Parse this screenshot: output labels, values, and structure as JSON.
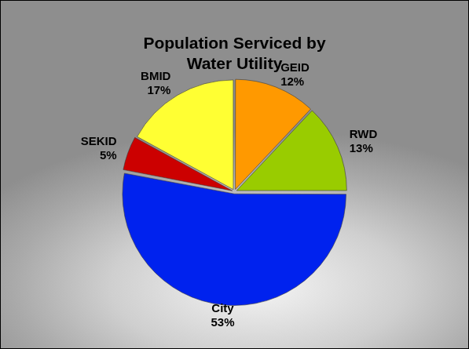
{
  "chart_data": {
    "type": "pie",
    "title": "Population Serviced by Water Utility",
    "categories": [
      "GEID",
      "RWD",
      "City",
      "SEKID",
      "BMID"
    ],
    "values": [
      12,
      13,
      53,
      5,
      17
    ],
    "value_labels": [
      "12%",
      "13%",
      "53%",
      "5%",
      "17%"
    ],
    "colors": [
      "#ff9900",
      "#99cc00",
      "#0022ee",
      "#cc0000",
      "#ffff33"
    ],
    "data_labels": true
  }
}
